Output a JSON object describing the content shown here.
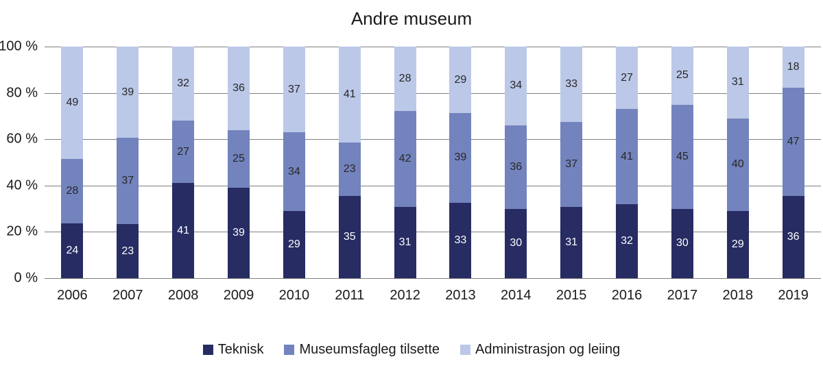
{
  "title": "Andre museum",
  "y_axis": {
    "ticks": [
      "100 %",
      "80 %",
      "60 %",
      "40 %",
      "20 %",
      "0 %"
    ]
  },
  "colors": {
    "background": "#ffffff",
    "gridline": "#7f7f7f",
    "text": "#1a1a1a",
    "teknisk": "#272c63",
    "museumsfagleg_tilsette": "#7383bd",
    "administrasjon_og_leiing": "#bcc8e8"
  },
  "chart_data": {
    "type": "bar",
    "stacked": true,
    "unit": "percent",
    "title": "Andre museum",
    "categories": [
      "2006",
      "2007",
      "2008",
      "2009",
      "2010",
      "2011",
      "2012",
      "2013",
      "2014",
      "2015",
      "2016",
      "2017",
      "2018",
      "2019"
    ],
    "series": [
      {
        "name": "Teknisk",
        "color": "#272c63",
        "label_color": "#ffffff",
        "values": [
          24,
          23,
          41,
          39,
          29,
          35,
          31,
          33,
          30,
          31,
          32,
          30,
          29,
          36
        ]
      },
      {
        "name": "Museumsfagleg tilsette",
        "color": "#7383bd",
        "label_color": "#262626",
        "values": [
          28,
          37,
          27,
          25,
          34,
          23,
          42,
          39,
          36,
          37,
          41,
          45,
          40,
          47
        ]
      },
      {
        "name": "Administrasjon og leiing",
        "color": "#bcc8e8",
        "label_color": "#262626",
        "values": [
          49,
          39,
          32,
          36,
          37,
          41,
          28,
          29,
          34,
          33,
          27,
          25,
          31,
          18
        ]
      }
    ],
    "ylim": [
      0,
      100
    ],
    "ytick_step": 20,
    "grid": "horizontal",
    "legend_position": "bottom"
  }
}
